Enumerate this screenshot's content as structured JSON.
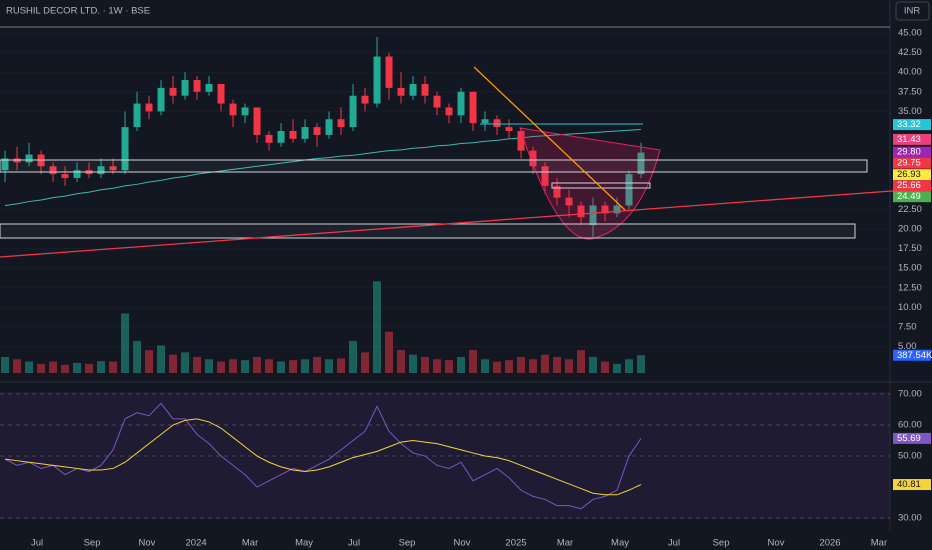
{
  "header": {
    "title": "RUSHIL DECOR LTD. · 1W · BSE",
    "currency": "INR"
  },
  "chart_data": [
    {
      "type": "candlestick",
      "xlim": [
        -0.42,
        77.25
      ],
      "xticks": [
        {
          "value": 2.67,
          "label": "Jul"
        },
        {
          "value": 7.25,
          "label": "Sep"
        },
        {
          "value": 11.83,
          "label": "Nov"
        },
        {
          "value": 15.92,
          "label": "2024"
        },
        {
          "value": 20.42,
          "label": "Mar"
        },
        {
          "value": 24.92,
          "label": "May"
        },
        {
          "value": 29.08,
          "label": "Jul"
        },
        {
          "value": 33.5,
          "label": "Sep"
        },
        {
          "value": 38.08,
          "label": "Nov"
        },
        {
          "value": 42.58,
          "label": "2025"
        },
        {
          "value": 46.67,
          "label": "Mar"
        },
        {
          "value": 51.25,
          "label": "May"
        },
        {
          "value": 55.75,
          "label": "Jul"
        },
        {
          "value": 59.67,
          "label": "Sep"
        },
        {
          "value": 64.25,
          "label": "Nov"
        },
        {
          "value": 68.75,
          "label": "2026"
        },
        {
          "value": 72.83,
          "label": "Mar"
        }
      ],
      "ylim": [
        0.74,
        49.21
      ],
      "yticks": [
        {
          "value": 45,
          "label": "45.00"
        },
        {
          "value": 42.5,
          "label": "42.50"
        },
        {
          "value": 40,
          "label": "40.00"
        },
        {
          "value": 37.5,
          "label": "37.50"
        },
        {
          "value": 35,
          "label": "35.00"
        },
        {
          "value": 22.5,
          "label": "22.50"
        },
        {
          "value": 20,
          "label": "20.00"
        },
        {
          "value": 17.5,
          "label": "17.50"
        },
        {
          "value": 15,
          "label": "15.00"
        },
        {
          "value": 12.5,
          "label": "12.50"
        },
        {
          "value": 10,
          "label": "10.00"
        },
        {
          "value": 7.5,
          "label": "7.50"
        },
        {
          "value": 5,
          "label": "5.00"
        }
      ],
      "up_color": "#22ab94",
      "down_color": "#f23645",
      "open": [
        27.5,
        29,
        28.5,
        29.5,
        28,
        27,
        26.5,
        27.5,
        27,
        28,
        27.5,
        33,
        36,
        35,
        38,
        37,
        39,
        37.5,
        38.5,
        36,
        34.5,
        35.5,
        32,
        31,
        32.5,
        31.5,
        33,
        32,
        34,
        33,
        37,
        36,
        42,
        38,
        37,
        38.5,
        37,
        35.5,
        34.5,
        37.5,
        33.5,
        34,
        33,
        32.5,
        30,
        28,
        25.5,
        24,
        23,
        20.5,
        23,
        22,
        23,
        27
      ],
      "high": [
        30,
        30.5,
        31,
        30,
        28.5,
        28,
        28.5,
        28.5,
        29,
        29,
        35,
        37.5,
        37,
        39,
        39.5,
        40,
        39.5,
        39.5,
        38.5,
        36.5,
        36,
        35.5,
        32.5,
        33.5,
        34,
        34,
        33.5,
        35,
        35.5,
        38.5,
        38,
        44.5,
        42.5,
        40,
        39.5,
        39.5,
        37.5,
        36,
        38,
        37.5,
        35,
        34.5,
        34,
        33,
        30.5,
        28.5,
        26.5,
        25,
        23.5,
        24,
        23.5,
        24,
        27.5,
        31
      ],
      "low": [
        26,
        27.5,
        28,
        27,
        26,
        25.5,
        26,
        26.5,
        26.5,
        27,
        27,
        32.5,
        34,
        34.5,
        36,
        36.5,
        36.5,
        37,
        35,
        33,
        33.5,
        31,
        30,
        30.5,
        31,
        31,
        30.5,
        31.5,
        32,
        32.5,
        35,
        35.5,
        36.5,
        36,
        36.5,
        36,
        34.5,
        33.5,
        33.5,
        32.5,
        32.5,
        32,
        31.5,
        29,
        27,
        24.5,
        23,
        21.5,
        20.5,
        19,
        21,
        21.5,
        22.5,
        26.5
      ],
      "close": [
        29,
        28.5,
        29.5,
        28,
        27,
        26.5,
        27.5,
        27,
        28,
        27.5,
        33,
        36,
        35,
        38,
        37,
        39,
        37.5,
        38.5,
        36,
        34.5,
        35.5,
        32,
        31,
        32.5,
        31.5,
        33,
        32,
        34,
        33,
        37,
        36,
        42,
        38,
        37,
        38.5,
        37,
        35.5,
        34.5,
        37.5,
        33.5,
        34,
        33,
        32.5,
        30,
        28,
        25.5,
        24,
        23,
        21.5,
        23,
        22,
        23,
        27,
        29.75
      ],
      "lines": [
        {
          "color": "#3fb8b0",
          "values": [
            23,
            23.2,
            23.5,
            23.7,
            24,
            24.2,
            24.5,
            24.7,
            25,
            25.2,
            25.5,
            25.7,
            26,
            26.2,
            26.5,
            26.7,
            27,
            27.2,
            27.4,
            27.6,
            27.8,
            28,
            28.2,
            28.4,
            28.6,
            28.8,
            29,
            29.1,
            29.3,
            29.4,
            29.6,
            29.8,
            30,
            30.1,
            30.3,
            30.4,
            30.6,
            30.7,
            30.9,
            31,
            31.2,
            31.3,
            31.5,
            31.6,
            31.8,
            31.9,
            32,
            32.1,
            32.2,
            32.3,
            32.4,
            32.5,
            32.6,
            32.7
          ]
        }
      ],
      "price_labels": [
        {
          "value": 33.32,
          "label": "33.32",
          "color": "#26c6da"
        },
        {
          "value": 31.43,
          "label": "31.43",
          "color": "#ec407a"
        },
        {
          "value": 29.8,
          "label": "29.80",
          "color": "#9c27b0"
        },
        {
          "value": 29.75,
          "label": "29.75",
          "color": "#f23645"
        },
        {
          "value": 26.93,
          "label": "26.93",
          "color": "#ffeb3b"
        },
        {
          "value": 25.66,
          "label": "25.66",
          "color": "#f23645"
        },
        {
          "value": 24.49,
          "label": "24.49",
          "color": "#4caf50"
        }
      ]
    },
    {
      "type": "bar",
      "ylim": [
        0,
        2400
      ],
      "values": [
        350,
        300,
        250,
        200,
        250,
        180,
        220,
        200,
        260,
        250,
        1300,
        700,
        500,
        600,
        400,
        450,
        350,
        300,
        250,
        300,
        280,
        350,
        300,
        250,
        280,
        300,
        350,
        300,
        320,
        700,
        450,
        2000,
        900,
        500,
        400,
        350,
        300,
        280,
        350,
        500,
        300,
        250,
        280,
        350,
        300,
        400,
        350,
        300,
        500,
        350,
        250,
        200,
        300,
        387.54
      ],
      "price_labels": [
        {
          "value": 387.54,
          "label": "387.54K",
          "color": "#2962ff"
        }
      ]
    },
    {
      "type": "line",
      "ylim": [
        25.5,
        71.3
      ],
      "yticks": [
        {
          "value": 70,
          "label": "70.00"
        },
        {
          "value": 60,
          "label": "60.00"
        },
        {
          "value": 50,
          "label": "50.00"
        },
        {
          "value": 30,
          "label": "30.00"
        }
      ],
      "series": [
        {
          "color": "#7e57c2",
          "values": [
            49,
            47,
            48,
            46,
            47,
            44,
            46,
            45,
            47,
            52,
            62,
            64,
            63,
            67,
            62,
            62,
            57,
            54,
            50,
            47,
            44,
            40,
            42,
            44,
            46,
            45,
            47,
            49,
            52,
            55,
            58,
            66,
            58,
            54,
            51,
            50,
            47,
            46,
            48,
            42,
            44,
            46,
            43,
            39,
            37,
            36,
            34,
            34,
            33,
            36,
            37,
            39,
            50,
            55.69
          ]
        },
        {
          "color": "#f5d33b",
          "values": [
            49,
            48.5,
            48,
            47.5,
            47,
            46.5,
            46,
            45.5,
            45.5,
            46,
            48,
            51,
            54,
            57,
            60,
            61.5,
            62,
            61,
            59,
            56,
            53,
            50,
            48,
            46.5,
            45.5,
            45,
            45.5,
            46.5,
            48,
            49.5,
            50.5,
            51.5,
            53,
            54.5,
            55,
            54.5,
            54,
            53,
            52,
            51,
            50,
            49.5,
            48.5,
            47,
            45.5,
            44,
            42.5,
            41,
            39.5,
            38,
            37.5,
            37.5,
            39,
            40.81
          ]
        }
      ],
      "price_labels": [
        {
          "value": 55.69,
          "label": "55.69",
          "color": "#7e57c2"
        },
        {
          "value": 40.81,
          "label": "40.81",
          "color": "#f5d33b"
        }
      ]
    }
  ]
}
